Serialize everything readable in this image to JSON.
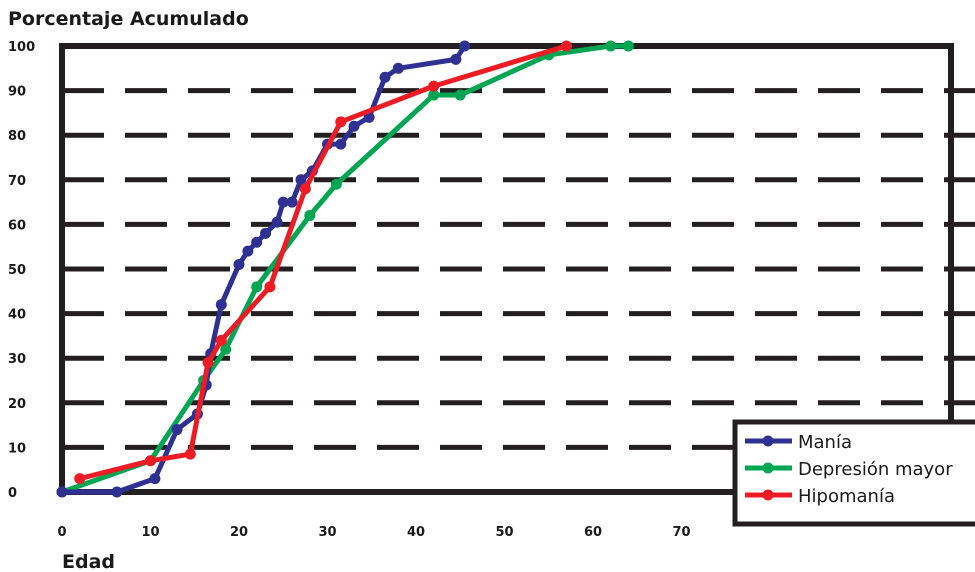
{
  "chart_data": {
    "type": "line",
    "ylabel": "Porcentaje Acumulado",
    "xlabel": "Edad",
    "xlim": [
      0,
      100
    ],
    "ylim": [
      0,
      100
    ],
    "x_ticks": [
      0,
      10,
      20,
      30,
      40,
      50,
      60,
      70
    ],
    "y_ticks": [
      0,
      10,
      20,
      30,
      40,
      50,
      60,
      70,
      80,
      90,
      100
    ],
    "grid": "horizontal dashed",
    "legend_position": "bottom-right",
    "series": [
      {
        "name": "Manía",
        "color": "#2e3192",
        "points": [
          [
            0,
            0
          ],
          [
            6.2,
            0
          ],
          [
            10.5,
            3
          ],
          [
            13,
            14
          ],
          [
            15.3,
            17.5
          ],
          [
            16.3,
            24
          ],
          [
            16.8,
            31
          ],
          [
            18,
            42
          ],
          [
            20,
            51
          ],
          [
            21,
            54
          ],
          [
            22,
            56
          ],
          [
            23,
            58
          ],
          [
            24.3,
            60.5
          ],
          [
            25,
            65
          ],
          [
            26,
            65
          ],
          [
            27,
            70
          ],
          [
            28.3,
            72
          ],
          [
            30,
            78
          ],
          [
            31.5,
            78
          ],
          [
            33,
            82
          ],
          [
            34.7,
            84
          ],
          [
            36.5,
            93
          ],
          [
            38,
            95
          ],
          [
            44.5,
            97
          ],
          [
            45.5,
            100
          ]
        ]
      },
      {
        "name": "Depresión mayor",
        "color": "#00a651",
        "points": [
          [
            0,
            0
          ],
          [
            10,
            7
          ],
          [
            16,
            25
          ],
          [
            18.5,
            32
          ],
          [
            22,
            46
          ],
          [
            28,
            62
          ],
          [
            31,
            69
          ],
          [
            42,
            89
          ],
          [
            45,
            89
          ],
          [
            55,
            98
          ],
          [
            62,
            100
          ],
          [
            64,
            100
          ]
        ]
      },
      {
        "name": "Hipomanía",
        "color": "#ed1c24",
        "points": [
          [
            2,
            3
          ],
          [
            10,
            7
          ],
          [
            14.5,
            8.5
          ],
          [
            16.5,
            29
          ],
          [
            18,
            34
          ],
          [
            23.5,
            46
          ],
          [
            27.5,
            68
          ],
          [
            31.5,
            83
          ],
          [
            42,
            91
          ],
          [
            57,
            100
          ]
        ]
      }
    ]
  }
}
